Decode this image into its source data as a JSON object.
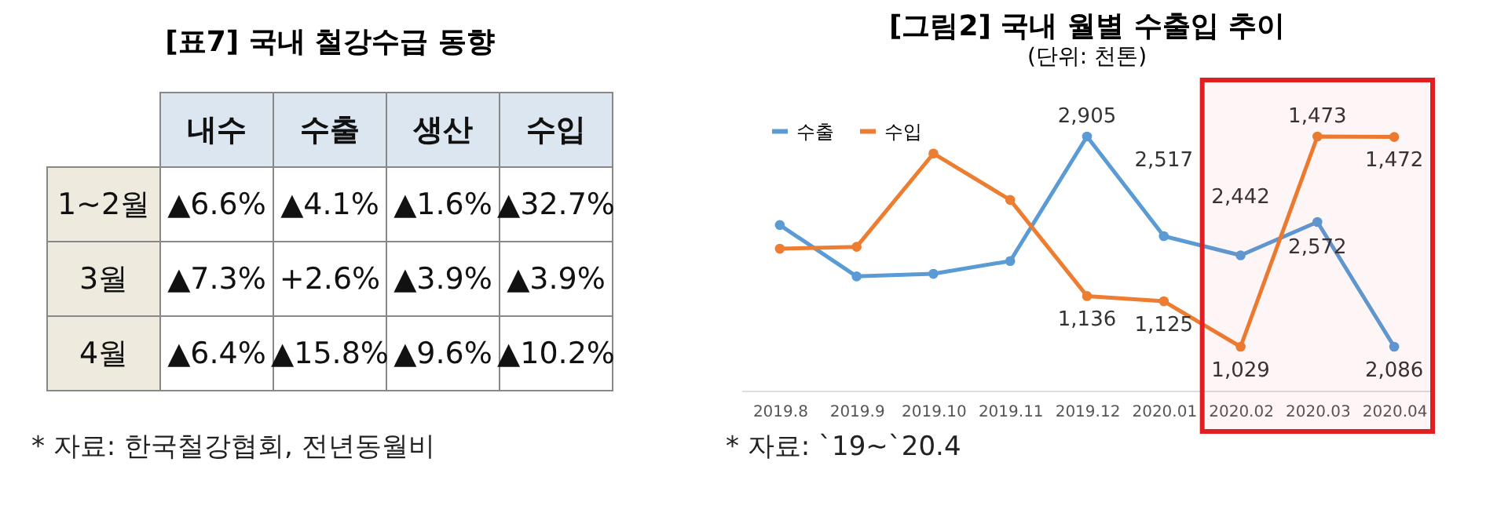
{
  "chart_data": [
    {
      "type": "other",
      "title": "[표7] 국내 철강수급 동향",
      "categories": [
        "내수",
        "수출",
        "생산",
        "수입"
      ],
      "y_categories": [
        "1~2월",
        "3월",
        "4월"
      ],
      "cell_labels": [
        [
          "▲6.6%",
          "▲4.1%",
          "▲1.6%",
          "▲32.7%"
        ],
        [
          "▲7.3%",
          "+2.6%",
          "▲3.9%",
          "▲3.9%"
        ],
        [
          "▲6.4%",
          "▲15.8%",
          "▲9.6%",
          "▲10.2%"
        ]
      ],
      "annotations": [
        "* 자료: 한국철강협회, 전년동월비"
      ]
    },
    {
      "type": "line",
      "title": "[그림2] 국내 월별 수출입 추이",
      "subtitle": "(단위: 천톤)",
      "categories": [
        "2019.8",
        "2019.9",
        "2019.10",
        "2019.11",
        "2019.12",
        "2020.01",
        "2020.02",
        "2020.03",
        "2020.04"
      ],
      "series": [
        {
          "name": "수출",
          "color": "#5b9bd5",
          "values": [
            2560,
            2360,
            2370,
            2420,
            2905,
            2517,
            2442,
            2572,
            2086
          ],
          "value_labels": [
            null,
            null,
            null,
            null,
            "2,905",
            "2,517",
            "2,442",
            "2,572",
            "2,086"
          ]
        },
        {
          "name": "수입",
          "color": "#ed7d31",
          "axis": "y2",
          "values": [
            1236,
            1240,
            1437,
            1339,
            1136,
            1125,
            1029,
            1473,
            1472
          ],
          "value_labels": [
            null,
            null,
            null,
            null,
            "1,136",
            "1,125",
            "1,029",
            "1,473",
            "1,472"
          ]
        }
      ],
      "tick_labels": "x",
      "grid": false,
      "legend": "top left",
      "marker": "circle",
      "line_style": "solid",
      "bands": [
        {
          "axis": "x",
          "from": "2020.02",
          "to": "2020.04",
          "color": "#e02020"
        }
      ],
      "annotations": [
        "* 자료: `19~`20.4"
      ]
    }
  ]
}
